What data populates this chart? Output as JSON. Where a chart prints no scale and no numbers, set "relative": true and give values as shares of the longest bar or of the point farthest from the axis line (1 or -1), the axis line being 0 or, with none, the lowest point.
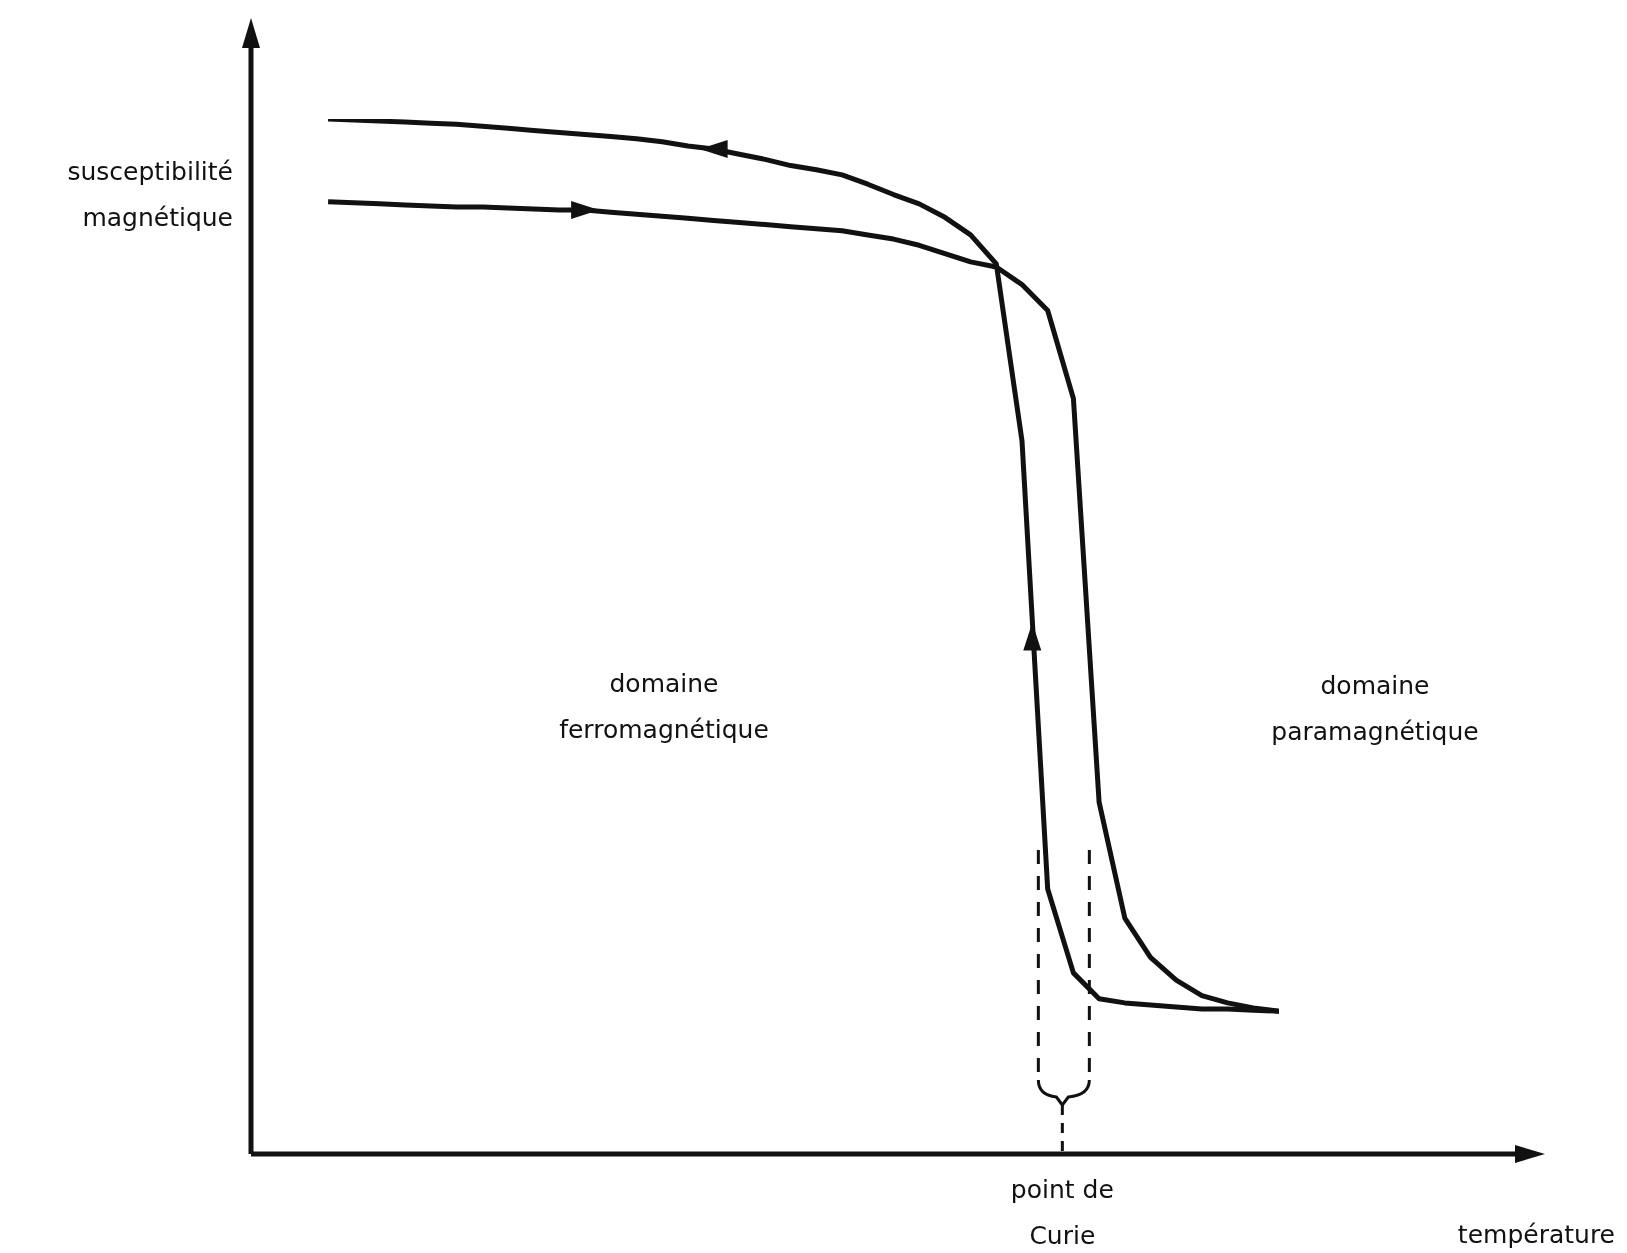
{
  "chart_data": {
    "type": "line",
    "relative": true,
    "ylabel": "susceptibilité magnétique",
    "categories": [
      null,
      null,
      null,
      null,
      null,
      null,
      null,
      null,
      null,
      null,
      null,
      null,
      null,
      null,
      null,
      null,
      null,
      null,
      null,
      null,
      null,
      null,
      null,
      null,
      null,
      null,
      null,
      null,
      null,
      null,
      null,
      null,
      null,
      null,
      null,
      null,
      null,
      null,
      null,
      null,
      null
    ],
    "series": [
      {
        "color": "#111111",
        "values": [
          null,
          null,
          null,
          0.92,
          0.919,
          0.918,
          0.917,
          0.916,
          0.915,
          0.915,
          0.914,
          0.913,
          0.912,
          0.912,
          0.91,
          0.908,
          0.906,
          0.904,
          0.902,
          0.9,
          0.898,
          0.896,
          0.894,
          0.892,
          0.888,
          0.884,
          0.878,
          0.87,
          0.862,
          0.857,
          0.84,
          0.815,
          0.73,
          0.34,
          0.228,
          0.19,
          0.168,
          0.153,
          0.146,
          0.141,
          0.138
        ]
      },
      {
        "color": "#111111",
        "values": [
          null,
          null,
          null,
          1.0,
          0.999,
          0.998,
          0.997,
          0.996,
          0.995,
          0.993,
          0.991,
          0.989,
          0.987,
          0.985,
          0.983,
          0.981,
          0.978,
          0.974,
          0.971,
          0.966,
          0.961,
          0.955,
          0.951,
          0.946,
          0.937,
          0.927,
          0.918,
          0.905,
          0.888,
          0.86,
          0.689,
          0.256,
          0.175,
          0.15,
          0.146,
          0.144,
          0.142,
          0.14,
          0.14,
          0.139,
          0.138
        ]
      }
    ],
    "annotations": [
      "domaine ferromagnétique",
      "domaine paramagnétique",
      "point de Curie",
      "température"
    ],
    "grid": false,
    "marker": "none",
    "line_style": "solid"
  }
}
